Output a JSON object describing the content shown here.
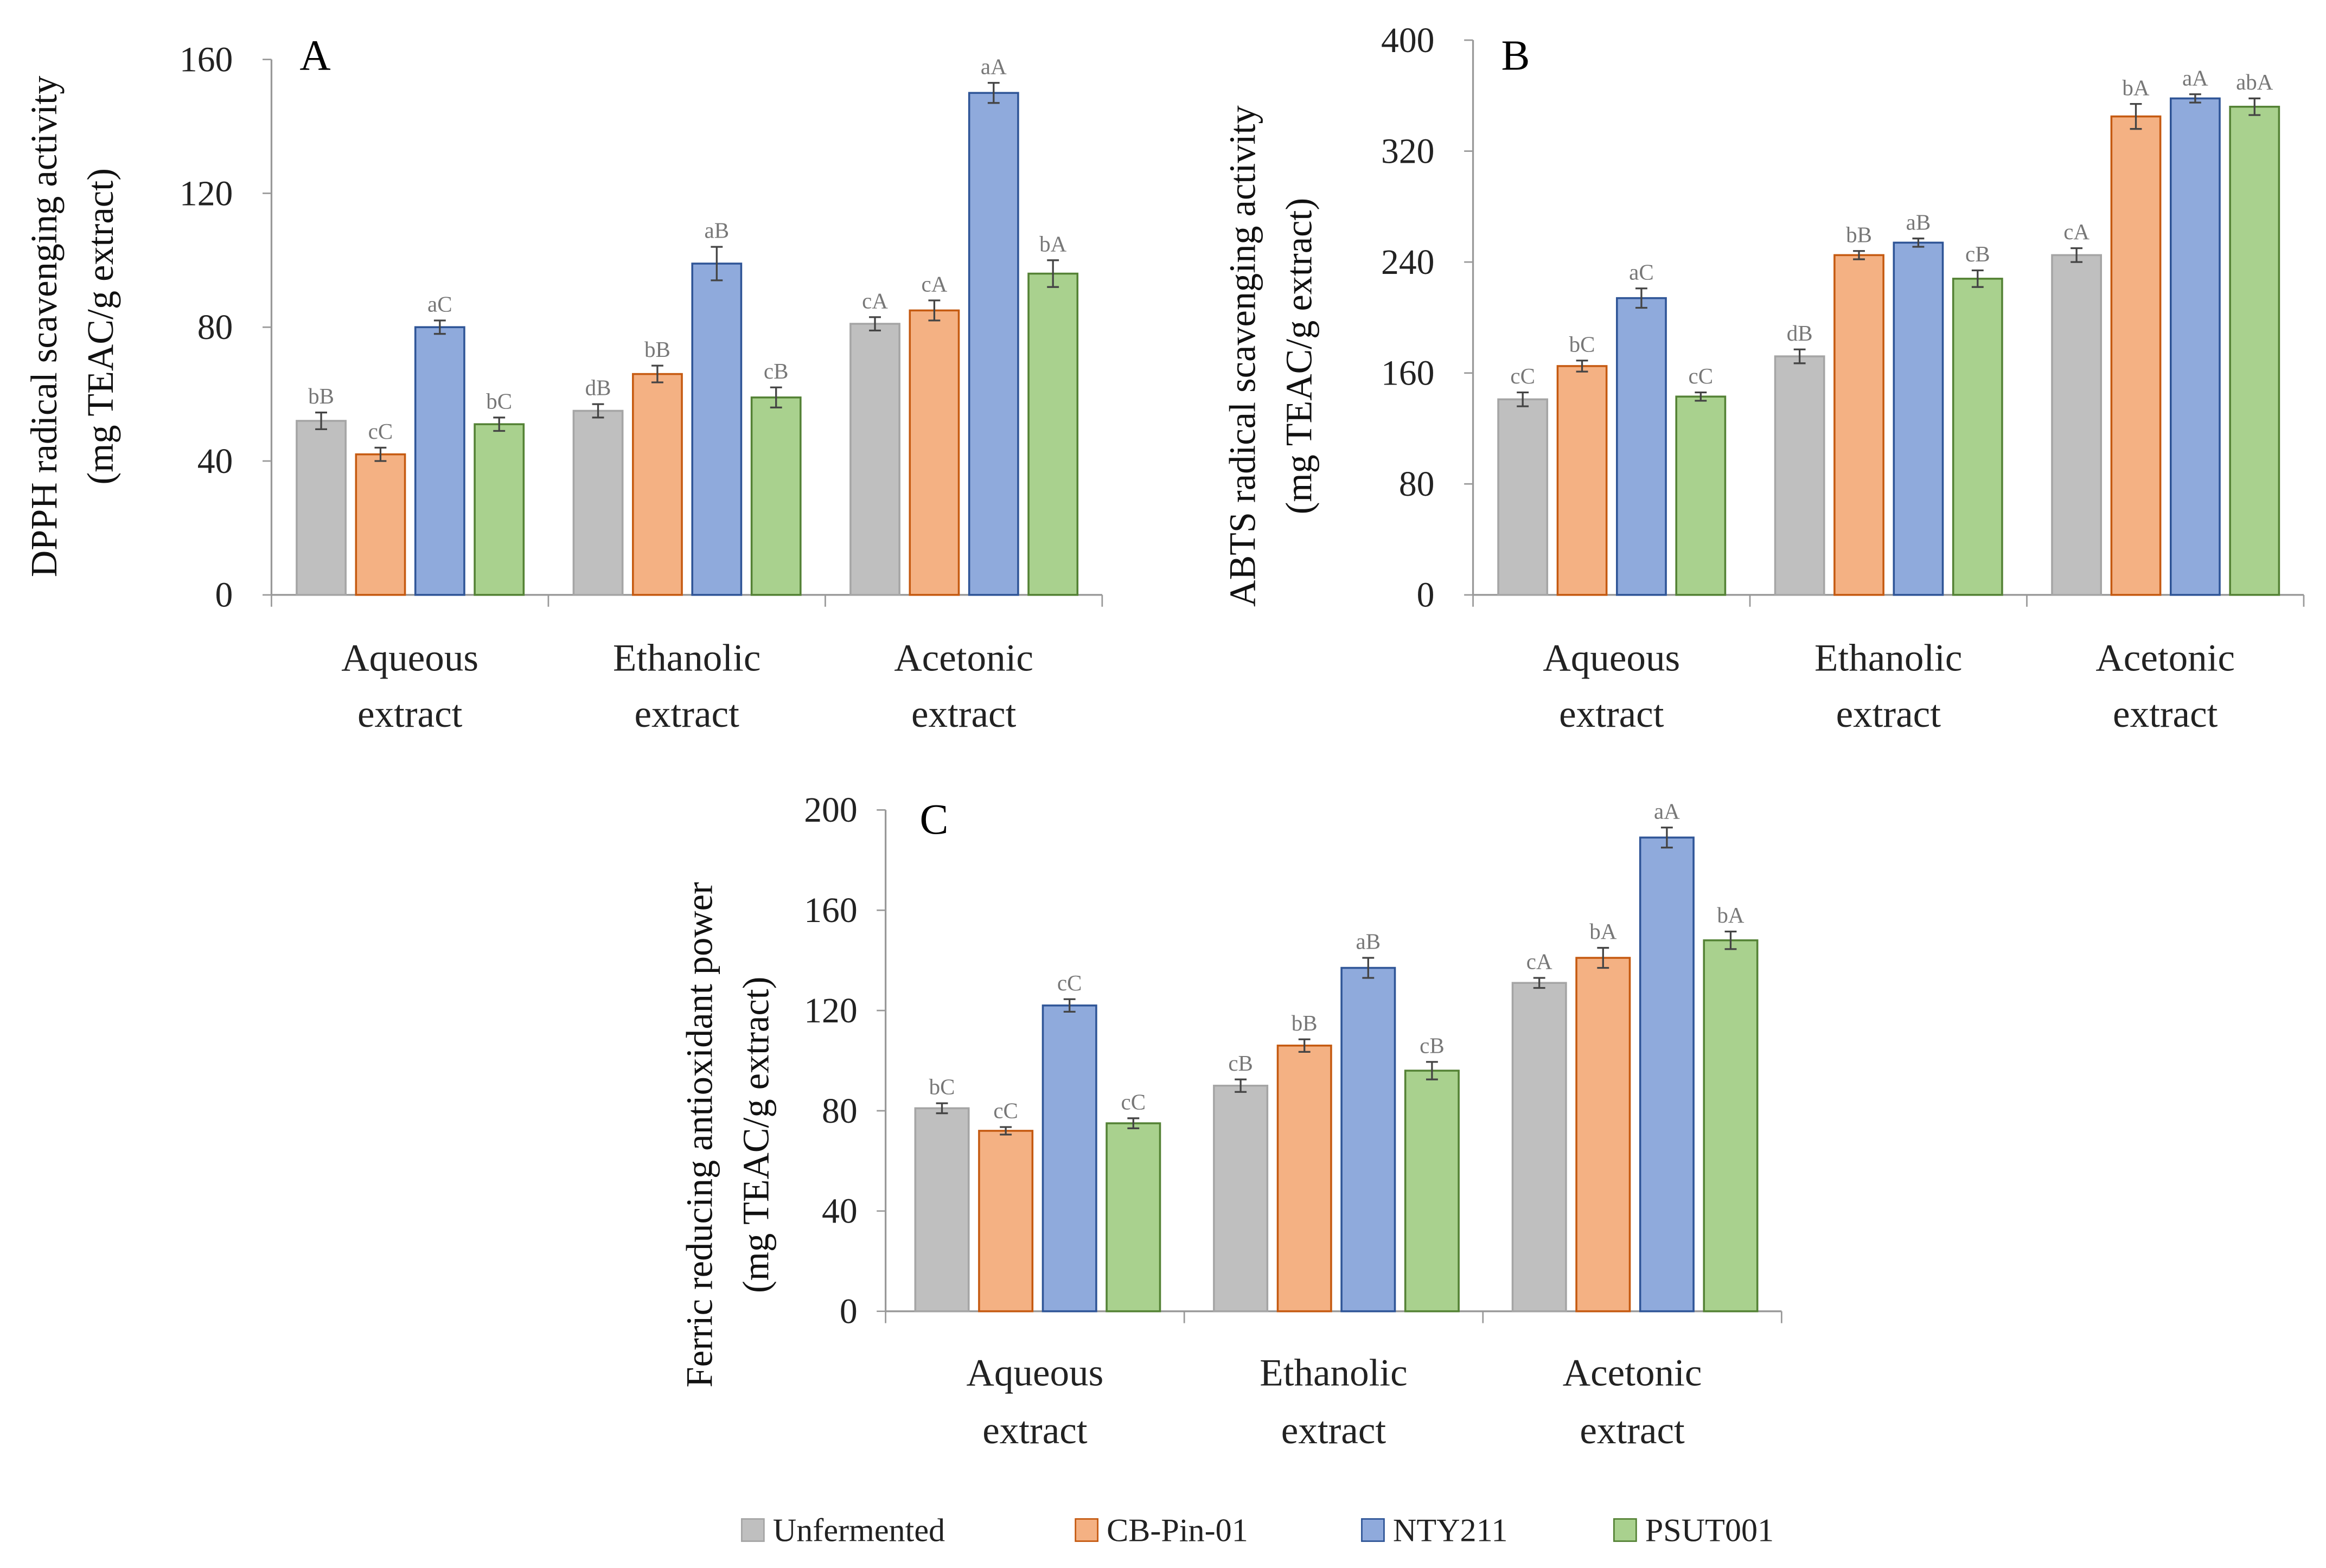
{
  "legend": [
    "Unfermented",
    "CB-Pin-01",
    "NTY211",
    "PSUT001"
  ],
  "colors": {
    "Unfermented": {
      "fill": "#bfbfbf",
      "stroke": "#a5a5a5"
    },
    "CB-Pin-01": {
      "fill": "#f4b183",
      "stroke": "#c55a11"
    },
    "NTY211": {
      "fill": "#8faadc",
      "stroke": "#2f5597"
    },
    "PSUT001": {
      "fill": "#a9d18e",
      "stroke": "#548235"
    }
  },
  "chart_data": [
    {
      "type": "bar",
      "panel": "A",
      "ylabel": [
        "DPPH radical scavenging activity",
        "(mg TEAC/g extract)"
      ],
      "categories": [
        [
          "Aqueous",
          "extract"
        ],
        [
          "Ethanolic",
          "extract"
        ],
        [
          "Acetonic",
          "extract"
        ]
      ],
      "ylim": [
        0,
        160
      ],
      "yticks": [
        0,
        40,
        80,
        120,
        160
      ],
      "series": [
        {
          "name": "Unfermented",
          "values": [
            52,
            55,
            81
          ],
          "errors": [
            2.5,
            2,
            2
          ],
          "labels": [
            "bB",
            "dB",
            "cA"
          ]
        },
        {
          "name": "CB-Pin-01",
          "values": [
            42,
            66,
            85
          ],
          "errors": [
            2,
            2.5,
            3
          ],
          "labels": [
            "cC",
            "bB",
            "cA"
          ]
        },
        {
          "name": "NTY211",
          "values": [
            80,
            99,
            150
          ],
          "errors": [
            2,
            5,
            3
          ],
          "labels": [
            "aC",
            "aB",
            "aA"
          ]
        },
        {
          "name": "PSUT001",
          "values": [
            51,
            59,
            96
          ],
          "errors": [
            2,
            3,
            4
          ],
          "labels": [
            "bC",
            "cB",
            "bA"
          ]
        }
      ]
    },
    {
      "type": "bar",
      "panel": "B",
      "ylabel": [
        "ABTS radical scavenging activity",
        "(mg TEAC/g extract)"
      ],
      "categories": [
        [
          "Aqueous",
          "extract"
        ],
        [
          "Ethanolic",
          "extract"
        ],
        [
          "Acetonic",
          "extract"
        ]
      ],
      "ylim": [
        0,
        400
      ],
      "yticks": [
        0,
        80,
        160,
        240,
        320,
        400
      ],
      "series": [
        {
          "name": "Unfermented",
          "values": [
            141,
            172,
            245
          ],
          "errors": [
            5,
            5,
            5
          ],
          "labels": [
            "cC",
            "dB",
            "cA"
          ]
        },
        {
          "name": "CB-Pin-01",
          "values": [
            165,
            245,
            345
          ],
          "errors": [
            4,
            3,
            9
          ],
          "labels": [
            "bC",
            "bB",
            "bA"
          ]
        },
        {
          "name": "NTY211",
          "values": [
            214,
            254,
            358
          ],
          "errors": [
            7,
            3,
            3
          ],
          "labels": [
            "aC",
            "aB",
            "aA"
          ]
        },
        {
          "name": "PSUT001",
          "values": [
            143,
            228,
            352
          ],
          "errors": [
            3,
            6,
            6
          ],
          "labels": [
            "cC",
            "cB",
            "abA"
          ]
        }
      ]
    },
    {
      "type": "bar",
      "panel": "C",
      "ylabel": [
        "Ferric reducing antioxidant power",
        "(mg TEAC/g extract)"
      ],
      "categories": [
        [
          "Aqueous",
          "extract"
        ],
        [
          "Ethanolic",
          "extract"
        ],
        [
          "Acetonic",
          "extract"
        ]
      ],
      "ylim": [
        0,
        200
      ],
      "yticks": [
        0,
        40,
        80,
        120,
        160,
        200
      ],
      "series": [
        {
          "name": "Unfermented",
          "values": [
            81,
            90,
            131
          ],
          "errors": [
            2,
            2.5,
            2
          ],
          "labels": [
            "bC",
            "cB",
            "cA"
          ]
        },
        {
          "name": "CB-Pin-01",
          "values": [
            72,
            106,
            141
          ],
          "errors": [
            1.5,
            2.5,
            4
          ],
          "labels": [
            "cC",
            "bB",
            "bA"
          ]
        },
        {
          "name": "NTY211",
          "values": [
            122,
            137,
            189
          ],
          "errors": [
            2.5,
            4,
            4
          ],
          "labels": [
            "cC",
            "aB",
            "aA"
          ]
        },
        {
          "name": "PSUT001",
          "values": [
            75,
            96,
            148
          ],
          "errors": [
            2,
            3.5,
            3.5
          ],
          "labels": [
            "cC",
            "cB",
            "bA"
          ]
        }
      ]
    }
  ]
}
